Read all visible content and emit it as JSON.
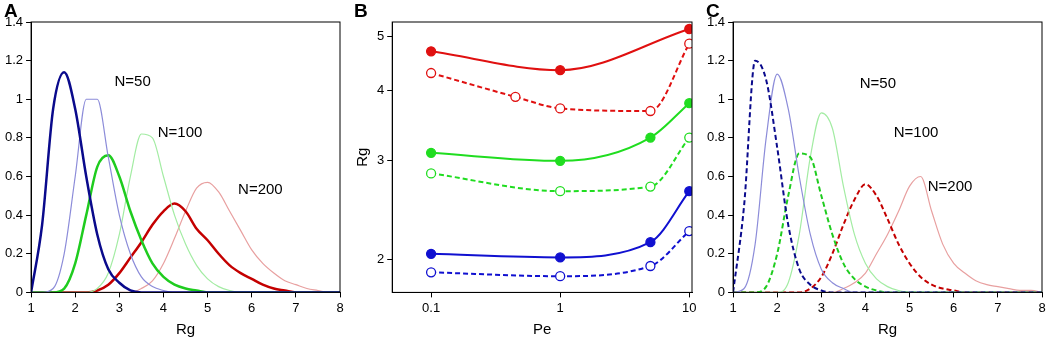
{
  "chart_data": [
    {
      "type": "line",
      "title": "A",
      "x_label": "Rg",
      "grid": false,
      "annotations": [
        "N=50",
        "N=100",
        "N=200"
      ],
      "x": [
        1,
        1.25,
        1.5,
        1.75,
        2,
        2.25,
        2.5,
        2.75,
        3,
        3.25,
        3.5,
        3.75,
        4,
        4.25,
        4.5,
        4.75,
        5,
        5.25,
        5.5,
        5.75,
        6,
        6.25,
        6.5,
        6.75,
        7,
        7.25,
        7.5,
        7.75,
        8
      ],
      "xlim": [
        1,
        8
      ],
      "xticks": [
        1,
        2,
        3,
        4,
        5,
        6,
        7,
        8
      ],
      "ylim": [
        0,
        1.4
      ],
      "yticks": [
        0,
        0.2,
        0.4,
        0.6,
        0.8,
        1,
        1.2,
        1.4
      ],
      "series": [
        {
          "color": "#0a0a8c",
          "line_style": "thick",
          "values": [
            0,
            0.35,
            0.95,
            1.14,
            0.95,
            0.6,
            0.3,
            0.12,
            0.05,
            0.01,
            0,
            0,
            0,
            0,
            0,
            0,
            0,
            0,
            0,
            0,
            0,
            0,
            0,
            0,
            0,
            0,
            0,
            0,
            0
          ]
        },
        {
          "color": "#8c8cd9",
          "line_style": "thin",
          "values": [
            0,
            0,
            0.02,
            0.2,
            0.6,
            1.0,
            1.0,
            0.7,
            0.4,
            0.2,
            0.08,
            0.03,
            0.01,
            0,
            0,
            0,
            0,
            0,
            0,
            0,
            0,
            0,
            0,
            0,
            0,
            0,
            0,
            0,
            0
          ]
        },
        {
          "color": "#1fcc1f",
          "line_style": "thick",
          "values": [
            0,
            0,
            0,
            0.02,
            0.15,
            0.4,
            0.65,
            0.71,
            0.6,
            0.42,
            0.27,
            0.15,
            0.08,
            0.04,
            0.02,
            0.01,
            0,
            0,
            0,
            0,
            0,
            0,
            0,
            0,
            0,
            0,
            0,
            0,
            0
          ]
        },
        {
          "color": "#a3eca3",
          "line_style": "thin",
          "values": [
            0,
            0,
            0,
            0,
            0,
            0,
            0.02,
            0.1,
            0.3,
            0.6,
            0.82,
            0.8,
            0.6,
            0.4,
            0.25,
            0.14,
            0.07,
            0.03,
            0.01,
            0,
            0,
            0,
            0,
            0,
            0,
            0,
            0,
            0,
            0
          ]
        },
        {
          "color": "#c40000",
          "line_style": "thick",
          "values": [
            0,
            0,
            0,
            0,
            0,
            0,
            0.01,
            0.04,
            0.1,
            0.18,
            0.26,
            0.35,
            0.42,
            0.46,
            0.42,
            0.33,
            0.27,
            0.2,
            0.14,
            0.1,
            0.07,
            0.04,
            0.02,
            0.01,
            0,
            0,
            0,
            0,
            0
          ]
        },
        {
          "color": "#e8a0a0",
          "line_style": "thin",
          "values": [
            0,
            0,
            0,
            0,
            0,
            0,
            0,
            0,
            0,
            0,
            0.02,
            0.06,
            0.15,
            0.28,
            0.42,
            0.54,
            0.57,
            0.52,
            0.42,
            0.32,
            0.22,
            0.15,
            0.1,
            0.06,
            0.04,
            0.02,
            0.01,
            0,
            0
          ]
        }
      ]
    },
    {
      "type": "line",
      "title": "B",
      "x_label": "Pe",
      "y_label": "Rg",
      "grid": false,
      "log": true,
      "xlim": [
        0.05,
        10.5
      ],
      "xticks": [
        0.1,
        1,
        10
      ],
      "ylim": [
        1.75,
        5.3
      ],
      "yticks": [
        2,
        3,
        4,
        5
      ],
      "series": [
        {
          "color": "#e01010",
          "line_style": "solid",
          "marker": "filled circle",
          "x": [
            0.1,
            1,
            10
          ],
          "values": [
            4.7,
            4.35,
            5.15
          ]
        },
        {
          "color": "#e01010",
          "line_style": "dashed",
          "marker": "open circle",
          "x": [
            0.1,
            0.45,
            1,
            5,
            10
          ],
          "values": [
            4.3,
            3.9,
            3.72,
            3.68,
            4.85
          ]
        },
        {
          "color": "#20dd20",
          "line_style": "solid",
          "marker": "filled circle",
          "x": [
            0.1,
            1,
            5,
            10
          ],
          "values": [
            3.1,
            3.0,
            3.3,
            3.8
          ]
        },
        {
          "color": "#20dd20",
          "line_style": "dashed",
          "marker": "open circle",
          "x": [
            0.1,
            1,
            5,
            10
          ],
          "values": [
            2.85,
            2.65,
            2.7,
            3.3
          ]
        },
        {
          "color": "#1010d0",
          "line_style": "solid",
          "marker": "filled circle",
          "x": [
            0.1,
            1,
            5,
            10
          ],
          "values": [
            2.05,
            2.02,
            2.15,
            2.65
          ]
        },
        {
          "color": "#1010d0",
          "line_style": "dashed",
          "marker": "open circle",
          "x": [
            0.1,
            1,
            5,
            10
          ],
          "values": [
            1.9,
            1.87,
            1.95,
            2.25
          ]
        }
      ]
    },
    {
      "type": "line",
      "title": "C",
      "x_label": "Rg",
      "grid": false,
      "annotations": [
        "N=50",
        "N=100",
        "N=200"
      ],
      "x": [
        1,
        1.25,
        1.5,
        1.75,
        2,
        2.25,
        2.5,
        2.75,
        3,
        3.25,
        3.5,
        3.75,
        4,
        4.25,
        4.5,
        4.75,
        5,
        5.25,
        5.5,
        5.75,
        6,
        6.25,
        6.5,
        6.75,
        7,
        7.25,
        7.5,
        7.75,
        8
      ],
      "xlim": [
        1,
        8
      ],
      "xticks": [
        1,
        2,
        3,
        4,
        5,
        6,
        7,
        8
      ],
      "ylim": [
        0,
        1.4
      ],
      "yticks": [
        0,
        0.2,
        0.4,
        0.6,
        0.8,
        1,
        1.2,
        1.4
      ],
      "series": [
        {
          "color": "#0a0a8c",
          "line_style": "dashed",
          "values": [
            0,
            0.45,
            1.2,
            1.1,
            0.75,
            0.35,
            0.12,
            0.04,
            0.01,
            0,
            0,
            0,
            0,
            0,
            0,
            0,
            0,
            0,
            0,
            0,
            0,
            0,
            0,
            0,
            0,
            0,
            0,
            0,
            0
          ]
        },
        {
          "color": "#8c8cd9",
          "line_style": "thin",
          "values": [
            0,
            0.02,
            0.25,
            0.8,
            1.13,
            0.95,
            0.6,
            0.3,
            0.12,
            0.05,
            0.02,
            0,
            0,
            0,
            0,
            0,
            0,
            0,
            0,
            0,
            0,
            0,
            0,
            0,
            0,
            0,
            0,
            0,
            0
          ]
        },
        {
          "color": "#1fcc1f",
          "line_style": "dashed",
          "values": [
            0,
            0,
            0,
            0.03,
            0.2,
            0.5,
            0.72,
            0.7,
            0.5,
            0.3,
            0.15,
            0.07,
            0.03,
            0.01,
            0,
            0,
            0,
            0,
            0,
            0,
            0,
            0,
            0,
            0,
            0,
            0,
            0,
            0,
            0
          ]
        },
        {
          "color": "#a3eca3",
          "line_style": "thin",
          "values": [
            0,
            0,
            0,
            0,
            0,
            0.05,
            0.3,
            0.7,
            0.93,
            0.85,
            0.55,
            0.3,
            0.15,
            0.07,
            0.03,
            0.01,
            0,
            0,
            0,
            0,
            0,
            0,
            0,
            0,
            0,
            0,
            0,
            0,
            0
          ]
        },
        {
          "color": "#c40000",
          "line_style": "dashed",
          "values": [
            0,
            0,
            0,
            0,
            0,
            0,
            0,
            0.02,
            0.08,
            0.2,
            0.35,
            0.48,
            0.56,
            0.5,
            0.38,
            0.25,
            0.15,
            0.08,
            0.04,
            0.02,
            0.01,
            0,
            0,
            0,
            0,
            0,
            0,
            0,
            0
          ]
        },
        {
          "color": "#e8a0a0",
          "line_style": "thin",
          "values": [
            0,
            0,
            0,
            0,
            0,
            0,
            0,
            0,
            0,
            0,
            0.02,
            0.05,
            0.1,
            0.2,
            0.3,
            0.42,
            0.55,
            0.6,
            0.42,
            0.25,
            0.15,
            0.1,
            0.06,
            0.04,
            0.03,
            0.02,
            0.01,
            0.01,
            0
          ]
        }
      ]
    }
  ]
}
